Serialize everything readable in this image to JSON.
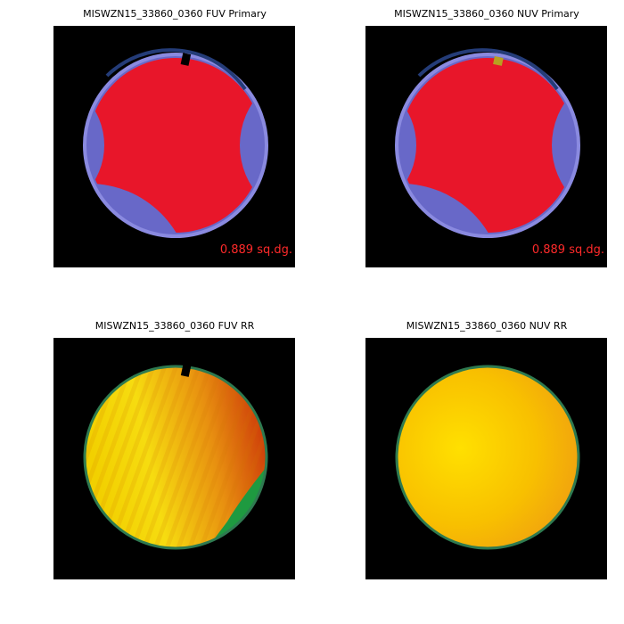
{
  "panels": [
    {
      "title": "MISWZN15_33860_0360 FUV Primary",
      "area_label": "0.889 sq.dg."
    },
    {
      "title": "MISWZN15_33860_0360 NUV Primary",
      "area_label": "0.889 sq.dg."
    },
    {
      "title": "MISWZN15_33860_0360 FUV RR"
    },
    {
      "title": "MISWZN15_33860_0360 NUV RR"
    }
  ]
}
